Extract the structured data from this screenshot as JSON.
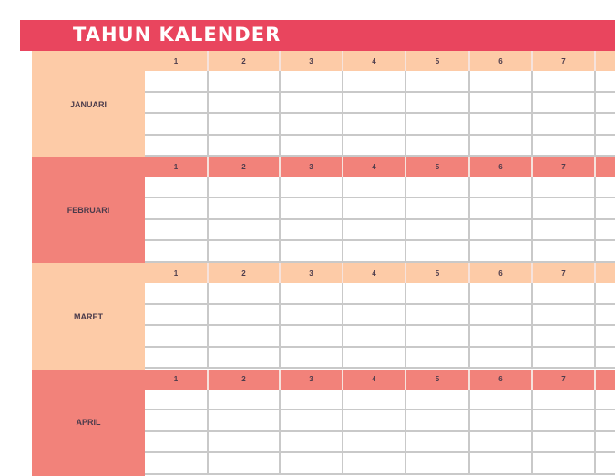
{
  "title": "TAHUN KALENDER",
  "colors": {
    "banner": "#E9455E",
    "peach": "#FDCBA7",
    "salmon": "#F2827A"
  },
  "days": [
    "1",
    "2",
    "3",
    "4",
    "5",
    "6",
    "7",
    ""
  ],
  "months": [
    {
      "name": "JANUARI",
      "theme": "peach"
    },
    {
      "name": "FEBRUARI",
      "theme": "salmon"
    },
    {
      "name": "MARET",
      "theme": "peach"
    },
    {
      "name": "APRIL",
      "theme": "salmon"
    }
  ]
}
